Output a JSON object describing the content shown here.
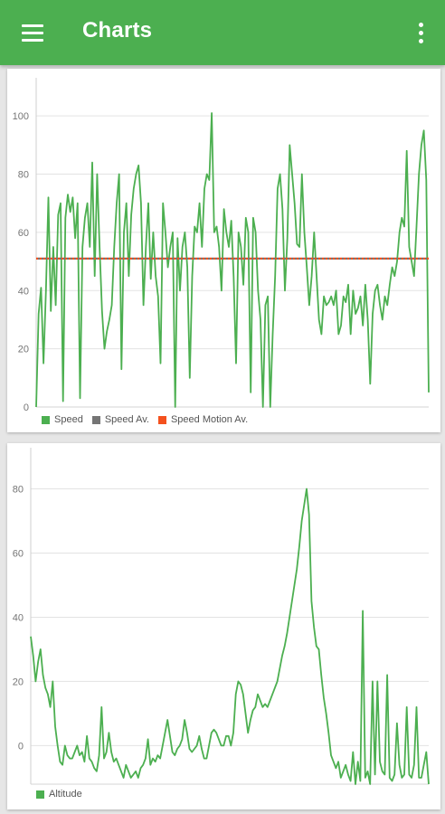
{
  "appbar": {
    "title": "Charts",
    "menu_icon": "hamburger-menu-icon",
    "overflow_icon": "more-vert-icon",
    "color": "#4caf50"
  },
  "chart_data": [
    {
      "type": "line",
      "title": "",
      "xlabel": "",
      "ylabel": "",
      "ylim": [
        0,
        110
      ],
      "yticks": [
        0,
        20,
        40,
        60,
        80,
        100
      ],
      "grid": true,
      "legend_position": "bottom-left",
      "series": [
        {
          "name": "Speed",
          "color": "#4caf50",
          "values": [
            0,
            32,
            41,
            15,
            40,
            72,
            33,
            55,
            35,
            66,
            70,
            2,
            65,
            73,
            67,
            72,
            58,
            70,
            3,
            55,
            65,
            70,
            55,
            84,
            45,
            80,
            55,
            33,
            20,
            26,
            30,
            35,
            55,
            70,
            80,
            13,
            60,
            70,
            45,
            66,
            75,
            80,
            83,
            70,
            35,
            55,
            70,
            44,
            60,
            45,
            38,
            15,
            70,
            60,
            48,
            55,
            60,
            0,
            58,
            40,
            55,
            60,
            48,
            10,
            45,
            62,
            60,
            70,
            55,
            75,
            80,
            78,
            101,
            60,
            62,
            55,
            40,
            68,
            60,
            55,
            64,
            45,
            15,
            60,
            55,
            42,
            65,
            60,
            5,
            65,
            60,
            40,
            30,
            0,
            35,
            38,
            0,
            25,
            45,
            75,
            80,
            68,
            40,
            58,
            90,
            80,
            70,
            56,
            55,
            80,
            60,
            48,
            35,
            45,
            60,
            45,
            30,
            25,
            38,
            35,
            36,
            38,
            35,
            40,
            25,
            28,
            38,
            36,
            42,
            25,
            40,
            32,
            34,
            38,
            28,
            42,
            30,
            8,
            32,
            40,
            42,
            35,
            30,
            38,
            35,
            42,
            48,
            45,
            50,
            60,
            65,
            62,
            88,
            55,
            50,
            45,
            62,
            80,
            90,
            95,
            78,
            5
          ]
        },
        {
          "name": "Speed Av.",
          "color": "#757575",
          "values": [
            51,
            51
          ]
        },
        {
          "name": "Speed Motion Av.",
          "color": "#f4511e",
          "values": [
            51,
            51
          ]
        }
      ]
    },
    {
      "type": "line",
      "title": "",
      "xlabel": "",
      "ylabel": "",
      "ylim": [
        -12,
        90
      ],
      "yticks": [
        0,
        20,
        40,
        60,
        80
      ],
      "grid": true,
      "legend_position": "bottom-left",
      "series": [
        {
          "name": "Altitude",
          "color": "#4caf50",
          "values": [
            34,
            28,
            20,
            26,
            30,
            22,
            18,
            16,
            12,
            20,
            6,
            0,
            -5,
            -6,
            0,
            -3,
            -4,
            -4,
            -2,
            0,
            -3,
            -2,
            -5,
            3,
            -4,
            -5,
            -7,
            -8,
            -3,
            12,
            -4,
            -2,
            4,
            -2,
            -5,
            -4,
            -6,
            -8,
            -10,
            -6,
            -8,
            -10,
            -9,
            -8,
            -10,
            -7,
            -6,
            -4,
            2,
            -6,
            -4,
            -5,
            -3,
            -4,
            0,
            4,
            8,
            3,
            -2,
            -3,
            -1,
            0,
            2,
            8,
            4,
            -1,
            -2,
            -1,
            0,
            3,
            -1,
            -4,
            -4,
            0,
            4,
            5,
            4,
            2,
            0,
            0,
            3,
            3,
            0,
            4,
            16,
            20,
            19,
            16,
            10,
            4,
            8,
            11,
            12,
            16,
            14,
            12,
            13,
            12,
            14,
            16,
            18,
            20,
            24,
            28,
            31,
            35,
            40,
            45,
            50,
            55,
            62,
            70,
            75,
            80,
            72,
            45,
            37,
            31,
            30,
            22,
            15,
            10,
            4,
            -3,
            -5,
            -7,
            -5,
            -10,
            -8,
            -6,
            -9,
            -11,
            -2,
            -12,
            -5,
            -11,
            42,
            -10,
            -8,
            -12,
            20,
            -9,
            20,
            -5,
            -8,
            -9,
            22,
            -10,
            -11,
            -9,
            7,
            -6,
            -10,
            -9,
            12,
            -9,
            -10,
            -6,
            12,
            -10,
            -10,
            -6,
            -2,
            -12
          ]
        }
      ]
    }
  ]
}
